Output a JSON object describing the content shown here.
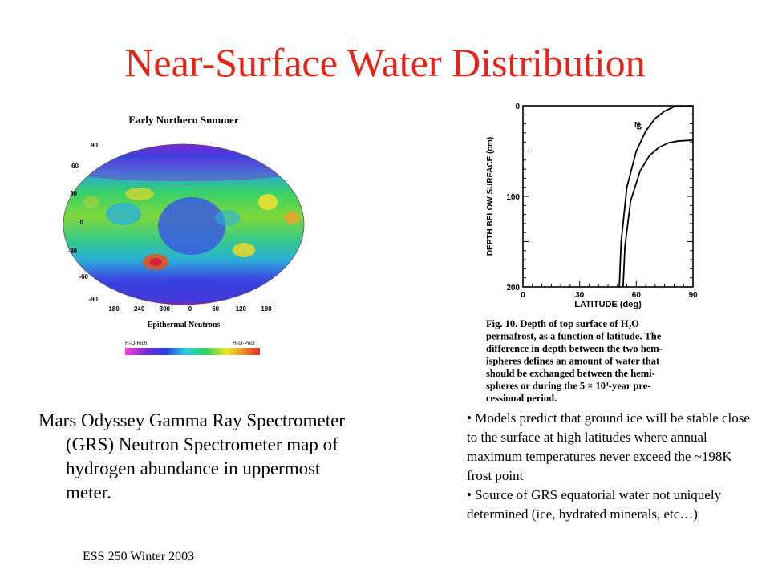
{
  "slide": {
    "title": "Near-Surface Water Distribution",
    "footer": "ESS 250 Winter 2003",
    "title_color": "#e8231a"
  },
  "map": {
    "header": "Early Northern Summer",
    "subtitle": "Epithermal Neutrons",
    "lat_labels": [
      "90",
      "60",
      "30",
      "0",
      "-30",
      "-60",
      "-90"
    ],
    "lon_labels": [
      "180",
      "240",
      "300",
      "0",
      "60",
      "120",
      "180"
    ],
    "legend_left": "H₂O-Rich",
    "legend_right": "H₂O-Poor"
  },
  "figure": {
    "y_axis_label": "DEPTH BELOW SURFACE (cm)",
    "x_axis_label": "LATITUDE (deg)",
    "y_ticks": [
      "0",
      "100",
      "200"
    ],
    "x_ticks": [
      "0",
      "30",
      "60",
      "90"
    ],
    "curve_labels": [
      "N",
      "S"
    ],
    "caption": "Fig. 10. Depth of top surface of H₂O permafrost, as a function of latitude. The difference in depth between the two hemispheres defines an amount of water that should be exchanged between the hemispheres or during the 5 × 10⁴-year precessional period.",
    "caption_lines": [
      "Fig. 10.  Depth of top surface of H₂O",
      "permafrost, as a function of latitude. The",
      "difference in depth between the two hem-",
      "ispheres defines an amount of water that",
      "should be exchanged between the hemi-",
      "spheres or during the 5 × 10⁴-year pre-",
      "cessional period."
    ]
  },
  "chart_data": {
    "type": "line",
    "title": "",
    "xlabel": "LATITUDE (deg)",
    "ylabel": "DEPTH BELOW SURFACE (cm)",
    "xlim": [
      0,
      90
    ],
    "ylim": [
      200,
      0
    ],
    "series": [
      {
        "name": "N",
        "x": [
          51,
          52,
          55,
          60,
          65,
          70,
          75,
          80,
          90
        ],
        "y": [
          200,
          150,
          90,
          50,
          28,
          14,
          6,
          1,
          0
        ]
      },
      {
        "name": "S",
        "x": [
          53,
          54,
          57,
          62,
          67,
          72,
          77,
          82,
          90
        ],
        "y": [
          200,
          155,
          105,
          72,
          55,
          46,
          41,
          39,
          38
        ]
      }
    ]
  },
  "left_caption": {
    "lines": [
      "Mars Odyssey Gamma Ray Spectrometer",
      "(GRS) Neutron Spectrometer map of",
      "hydrogen abundance in uppermost",
      "meter."
    ]
  },
  "bullets": [
    "• Models predict that ground ice will be stable close to the surface at high latitudes where annual maximum temperatures never exceed the ~198K frost point",
    "• Source of GRS equatorial water not uniquely determined (ice, hydrated minerals, etc…)"
  ]
}
